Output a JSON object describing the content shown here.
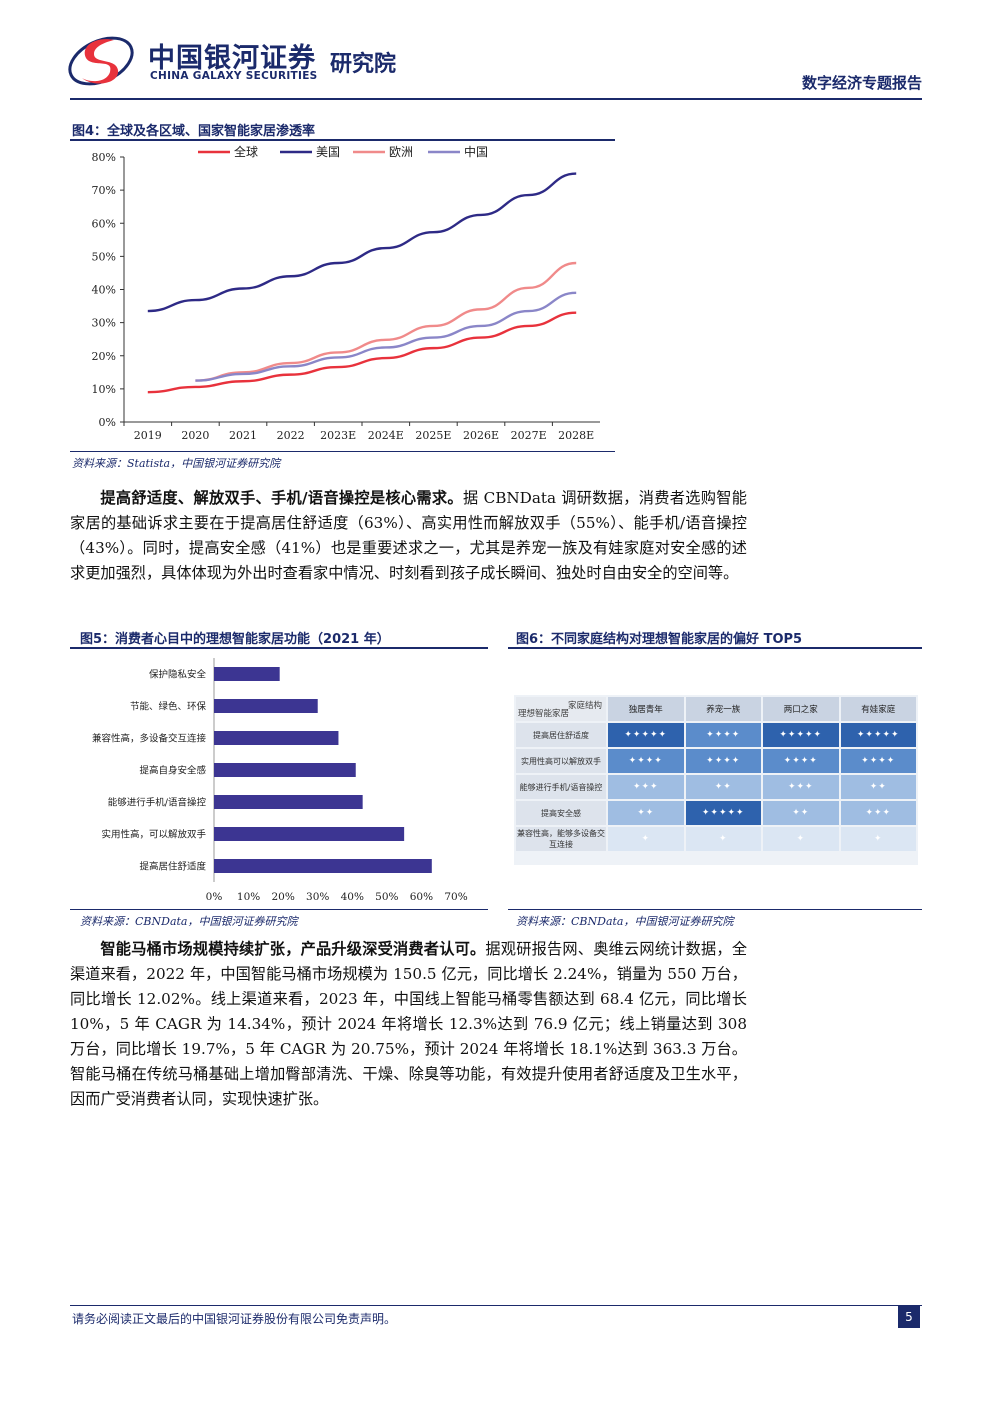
{
  "header": {
    "logo_cn": "中国银河证券",
    "logo_en": "CHINA GALAXY SECURITIES",
    "institute": "研究院",
    "report_type": "数字经济专题报告"
  },
  "fig4": {
    "title": "图4：全球及各区域、国家智能家居渗透率",
    "source": "资料来源：Statista，中国银河证券研究院"
  },
  "paragraph1": {
    "lead": "提高舒适度、解放双手、手机/语音操控是核心需求。",
    "body": "据 CBNData 调研数据，消费者选购智能家居的基础诉求主要在于提高居住舒适度（63%）、高实用性而解放双手（55%）、能手机/语音操控（43%）。同时，提高安全感（41%）也是重要述求之一，尤其是养宠一族及有娃家庭对安全感的述求更加强烈，具体体现为外出时查看家中情况、时刻看到孩子成长瞬间、独处时自由安全的空间等。"
  },
  "fig5": {
    "title": "图5：消费者心目中的理想智能家居功能（2021 年）",
    "source": "资料来源：CBNData，中国银河证券研究院"
  },
  "fig6": {
    "title": "图6：不同家庭结构对理想智能家居的偏好 TOP5",
    "source": "资料来源：CBNData，中国银河证券研究院",
    "corner_top": "家庭结构",
    "corner_bottom": "理想智能家居",
    "columns": [
      "独居青年",
      "养宠一族",
      "两口之家",
      "有娃家庭"
    ],
    "rows": [
      {
        "label": "提高居住舒适度",
        "stars": [
          5,
          4,
          5,
          5
        ]
      },
      {
        "label": "实用性高可以解放双手",
        "stars": [
          4,
          4,
          4,
          4
        ]
      },
      {
        "label": "能够进行手机/语音操控",
        "stars": [
          3,
          2,
          3,
          2
        ]
      },
      {
        "label": "提高安全感",
        "stars": [
          2,
          5,
          2,
          3
        ]
      },
      {
        "label": "兼容性高，能够多设备交互连接",
        "stars": [
          1,
          1,
          1,
          1
        ]
      }
    ]
  },
  "paragraph2": {
    "lead": "智能马桶市场规模持续扩张，产品升级深受消费者认可。",
    "body": "据观研报告网、奥维云网统计数据，全渠道来看，2022 年，中国智能马桶市场规模为 150.5 亿元，同比增长 2.24%，销量为 550 万台，同比增长 12.02%。线上渠道来看，2023 年，中国线上智能马桶零售额达到 68.4 亿元，同比增长 10%，5 年 CAGR 为 14.34%，预计 2024 年将增长 12.3%达到 76.9 亿元；线上销量达到 308 万台，同比增长 19.7%，5 年 CAGR 为 20.75%，预计 2024 年将增长 18.1%达到 363.3 万台。智能马桶在传统马桶基础上增加臀部清洗、干燥、除臭等功能，有效提升使用者舒适度及卫生水平，因而广受消费者认同，实现快速扩张。"
  },
  "footer": {
    "disclaimer": "请务必阅读正文最后的中国银河证券股份有限公司免责声明。",
    "page_number": "5"
  },
  "colors": {
    "navy": "#1b2a6b",
    "global": "#e8323c",
    "usa": "#2e2a86",
    "europe": "#f08a8a",
    "china": "#8a86c8",
    "bar": "#3c3592",
    "cell_dark": "#2e62ad",
    "cell_mid": "#5b8ccb",
    "cell_light": "#9fbde2",
    "cell_pale": "#dbe6f3"
  },
  "chart_data": [
    {
      "type": "line",
      "x": [
        "2019",
        "2020",
        "2021",
        "2022",
        "2023E",
        "2024E",
        "2025E",
        "2026E",
        "2027E",
        "2028E"
      ],
      "ylim": [
        0,
        80
      ],
      "yticks": [
        "0%",
        "10%",
        "20%",
        "30%",
        "40%",
        "50%",
        "60%",
        "70%",
        "80%"
      ],
      "legend_position": "top",
      "series": [
        {
          "name": "全球",
          "color": "#e8323c",
          "values": [
            9.0,
            10.6,
            12.3,
            14.3,
            16.6,
            19.3,
            22.3,
            25.5,
            29.0,
            33.0
          ]
        },
        {
          "name": "美国",
          "color": "#2e2a86",
          "values": [
            33.5,
            36.8,
            40.3,
            44.0,
            48.0,
            52.5,
            57.3,
            62.5,
            68.5,
            75.0
          ]
        },
        {
          "name": "欧洲",
          "color": "#f08a8a",
          "values": [
            null,
            12.5,
            15.0,
            17.8,
            21.0,
            24.8,
            29.0,
            34.0,
            40.5,
            48.0
          ]
        },
        {
          "name": "中国",
          "color": "#8a86c8",
          "values": [
            null,
            12.5,
            14.5,
            16.8,
            19.5,
            22.5,
            25.5,
            29.0,
            33.5,
            39.0
          ]
        }
      ]
    },
    {
      "type": "bar",
      "orientation": "horizontal",
      "categories": [
        "保护隐私安全",
        "节能、绿色、环保",
        "兼容性高，多设备交互连接",
        "提高自身安全感",
        "能够进行手机/语音操控",
        "实用性高，可以解放双手",
        "提高居住舒适度"
      ],
      "values": [
        19,
        30,
        36,
        41,
        43,
        55,
        63
      ],
      "xlim": [
        0,
        70
      ],
      "xticks": [
        "0%",
        "10%",
        "20%",
        "30%",
        "40%",
        "50%",
        "60%",
        "70%"
      ]
    }
  ]
}
